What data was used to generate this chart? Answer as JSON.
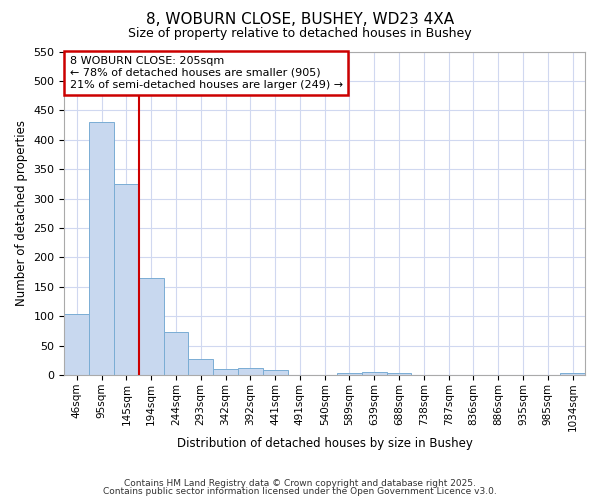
{
  "title1": "8, WOBURN CLOSE, BUSHEY, WD23 4XA",
  "title2": "Size of property relative to detached houses in Bushey",
  "xlabel": "Distribution of detached houses by size in Bushey",
  "ylabel": "Number of detached properties",
  "categories": [
    "46sqm",
    "95sqm",
    "145sqm",
    "194sqm",
    "244sqm",
    "293sqm",
    "342sqm",
    "392sqm",
    "441sqm",
    "491sqm",
    "540sqm",
    "589sqm",
    "639sqm",
    "688sqm",
    "738sqm",
    "787sqm",
    "836sqm",
    "886sqm",
    "935sqm",
    "985sqm",
    "1034sqm"
  ],
  "values": [
    104,
    430,
    325,
    165,
    73,
    28,
    11,
    12,
    9,
    1,
    0,
    4,
    5,
    3,
    0,
    0,
    0,
    0,
    0,
    0,
    4
  ],
  "bar_color": "#c8d8ef",
  "bar_edge_color": "#7aadd4",
  "ylim": [
    0,
    550
  ],
  "yticks": [
    0,
    50,
    100,
    150,
    200,
    250,
    300,
    350,
    400,
    450,
    500,
    550
  ],
  "redline_x": 3.0,
  "annotation_text": "8 WOBURN CLOSE: 205sqm\n← 78% of detached houses are smaller (905)\n21% of semi-detached houses are larger (249) →",
  "annotation_box_color": "#ffffff",
  "annotation_box_edge": "#cc0000",
  "footer1": "Contains HM Land Registry data © Crown copyright and database right 2025.",
  "footer2": "Contains public sector information licensed under the Open Government Licence v3.0.",
  "bg_color": "#ffffff",
  "plot_bg_color": "#ffffff",
  "grid_color": "#d0d8f0"
}
